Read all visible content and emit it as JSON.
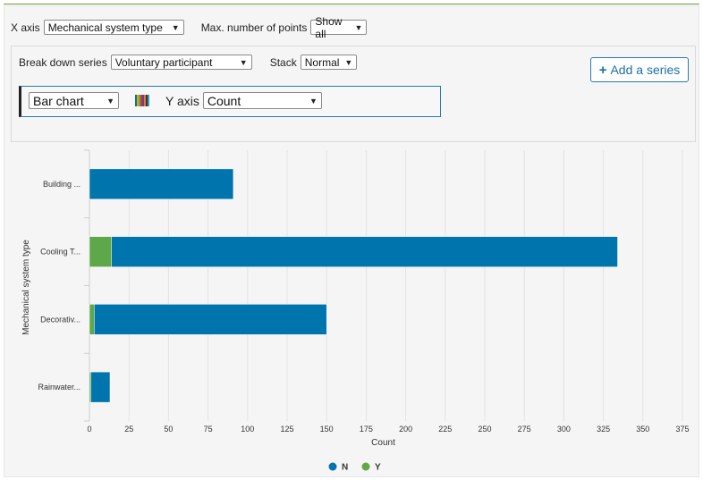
{
  "controls": {
    "x_axis_label": "X axis",
    "x_axis_value": "Mechanical system type",
    "max_points_label": "Max. number of points",
    "max_points_value": "Show all",
    "breakdown_label": "Break down series",
    "breakdown_value": "Voluntary participant",
    "stack_label": "Stack",
    "stack_value": "Normal",
    "add_series_label": "Add a series",
    "chart_type_value": "Bar chart",
    "y_axis_label": "Y axis",
    "y_axis_value": "Count"
  },
  "palette_colors": [
    "#0073ae",
    "#e6a800",
    "#69a94a",
    "#c33b3b",
    "#6c3e97",
    "#e47a2a",
    "#333333",
    "#2c9fd9"
  ],
  "chart_data": {
    "type": "bar",
    "orientation": "horizontal",
    "stacked": true,
    "categories": [
      "Building ...",
      "Cooling T...",
      "Decorativ...",
      "Rainwater..."
    ],
    "series": [
      {
        "name": "Y",
        "color": "#5ea84a",
        "values": [
          0,
          14,
          3,
          1
        ]
      },
      {
        "name": "N",
        "color": "#0074ad",
        "values": [
          91,
          320,
          147,
          12
        ]
      }
    ],
    "xlabel": "Count",
    "ylabel": "Mechanical system type",
    "xlim": [
      0,
      375
    ],
    "xticks": [
      0,
      25,
      50,
      75,
      100,
      125,
      150,
      175,
      200,
      225,
      250,
      275,
      300,
      325,
      350,
      375
    ],
    "grid": true,
    "legend_position": "bottom",
    "legend_order": [
      "N",
      "Y"
    ]
  }
}
